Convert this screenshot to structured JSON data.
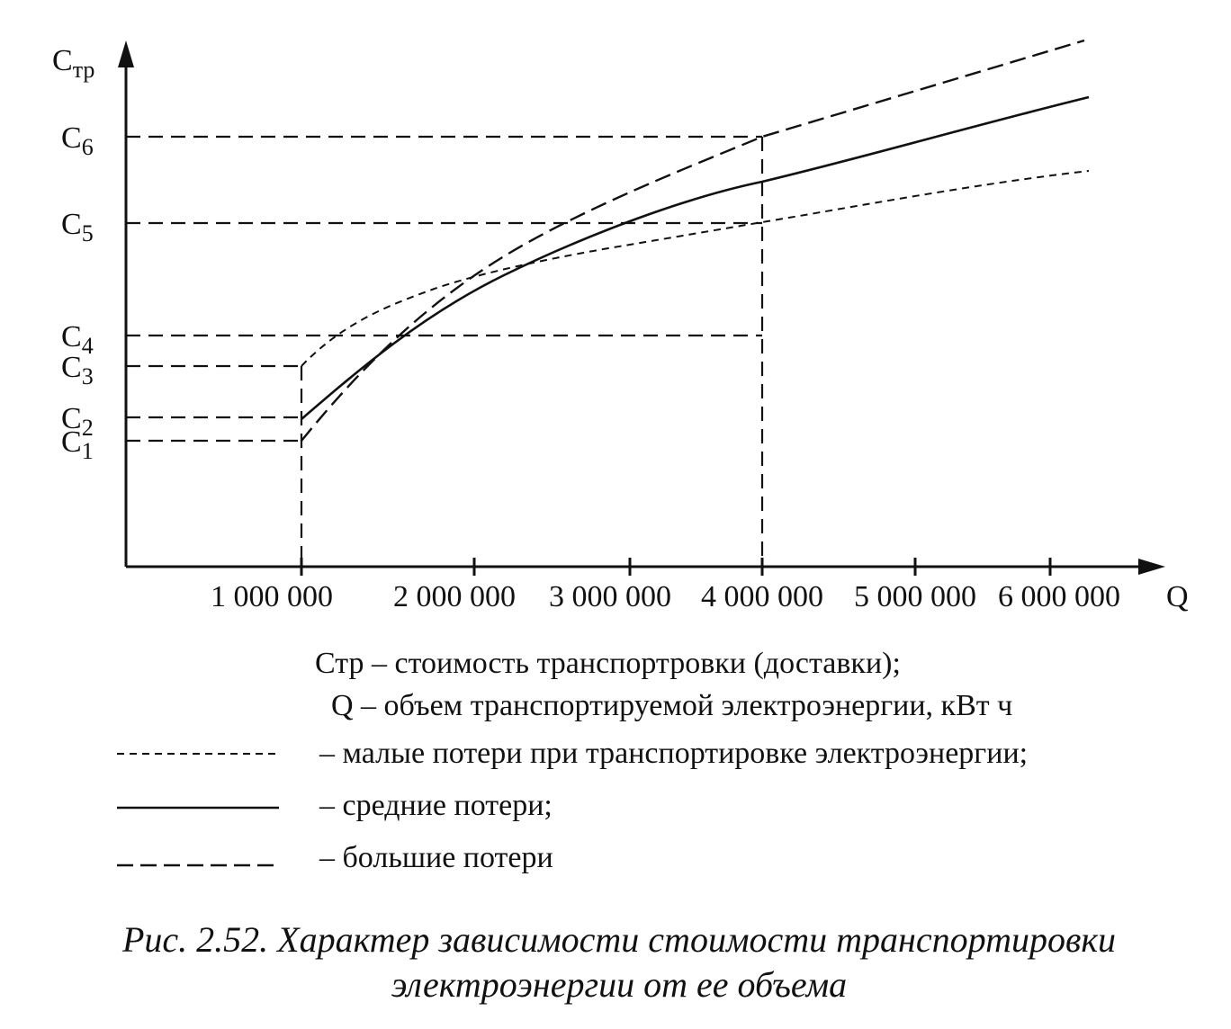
{
  "axis": {
    "y_label": {
      "base": "C",
      "sub": "тр"
    },
    "x_label": "Q",
    "y_ticks": [
      {
        "base": "C",
        "sub": "6"
      },
      {
        "base": "C",
        "sub": "5"
      },
      {
        "base": "C",
        "sub": "4"
      },
      {
        "base": "C",
        "sub": "3"
      },
      {
        "base": "C",
        "sub": "2"
      },
      {
        "base": "C",
        "sub": "1"
      }
    ],
    "x_ticks": [
      "1 000 000",
      "2 000 000",
      "3 000 000",
      "4 000 000",
      "5 000 000",
      "6 000 000"
    ]
  },
  "notes": [
    "Стр  – стоимость транспортровки (доставки);",
    "Q – объем транспортируемой электроэнергии, кВт ч"
  ],
  "legend": [
    "– малые потери при транспортировке электроэнергии;",
    "– средние потери;",
    "– большие потери"
  ],
  "caption": [
    "Рис. 2.52. Характер зависимости стоимости транспортировки",
    "электроэнергии от ее объема"
  ]
}
